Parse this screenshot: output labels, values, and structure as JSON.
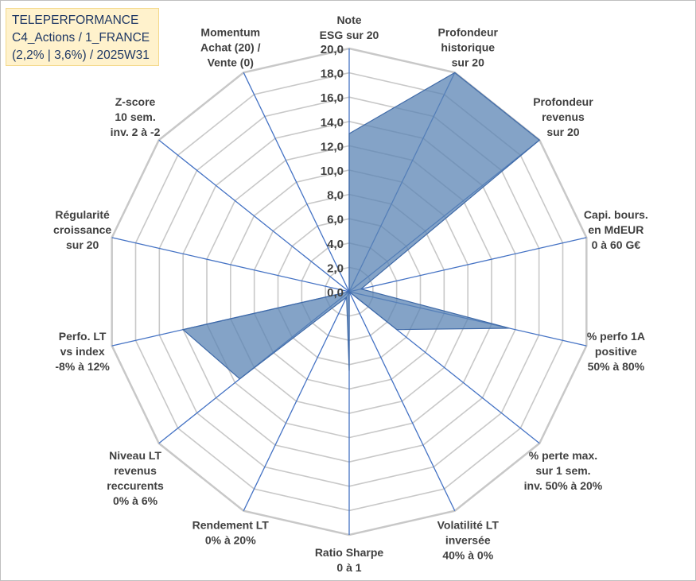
{
  "title_box": {
    "line1": "TELEPERFORMANCE",
    "line2": "C4_Actions / 1_FRANCE",
    "line3": "(2,2% | 3,6%) / 2025W31"
  },
  "chart_data": {
    "type": "radar",
    "title": "TELEPERFORMANCE",
    "rlim": [
      0,
      20
    ],
    "tick_values": [
      0,
      2,
      4,
      6,
      8,
      10,
      12,
      14,
      16,
      18,
      20
    ],
    "tick_labels": [
      "0,0",
      "2,0",
      "4,0",
      "6,0",
      "8,0",
      "10,0",
      "12,0",
      "14,0",
      "16,0",
      "18,0",
      "20,0"
    ],
    "grid": true,
    "categories": [
      [
        "Note",
        "ESG sur 20"
      ],
      [
        "Profondeur",
        "historique",
        "sur 20"
      ],
      [
        "Profondeur",
        "revenus",
        "sur 20"
      ],
      [
        "Capi. bours.",
        "en MdEUR",
        "0 à 60 G€"
      ],
      [
        "% perfo 1A",
        "positive",
        "50% à 80%"
      ],
      [
        "% perte max.",
        "sur 1 sem.",
        "inv. 50% à 20%"
      ],
      [
        "Volatilité LT",
        "inversée",
        "40% à 0%"
      ],
      [
        "Ratio Sharpe",
        "0 à 1"
      ],
      [
        "Rendement LT",
        "0% à 20%"
      ],
      [
        "Niveau LT",
        "revenus",
        "reccurents",
        "0% à 6%"
      ],
      [
        "Perfo. LT",
        "vs index",
        "-8% à 12%"
      ],
      [
        "Régularité",
        "croissance",
        "sur 20"
      ],
      [
        "Z-score",
        "10 sem.",
        "inv. 2 à -2"
      ],
      [
        "Momentum",
        "Achat (20) /",
        "Vente (0)"
      ]
    ],
    "series": [
      {
        "values": [
          13.0,
          20.0,
          20.0,
          1.0,
          13.5,
          5.0,
          0.0,
          6.5,
          0.5,
          11.5,
          14.0,
          0.0,
          0.0,
          0.0
        ],
        "color": "#4f79a8",
        "fill_opacity": 0.75
      }
    ],
    "colors": {
      "grid": "#c8c8c8",
      "spoke": "#4472c4",
      "fill": "#5b84b4",
      "edge": "#3f6aa8"
    }
  }
}
